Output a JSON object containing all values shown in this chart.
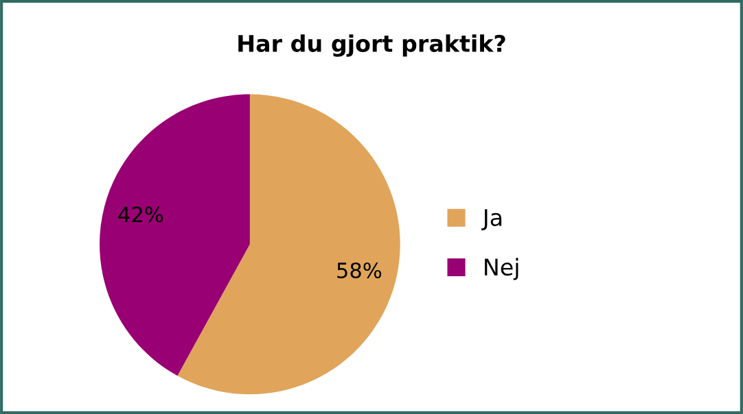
{
  "chart_data": {
    "type": "pie",
    "title": "Har du gjort praktik?",
    "categories": [
      "Ja",
      "Nej"
    ],
    "values": [
      58,
      42
    ],
    "colors": [
      "#e0a55a",
      "#990073"
    ],
    "value_labels": [
      "58%",
      "42%"
    ],
    "legend": "right"
  }
}
